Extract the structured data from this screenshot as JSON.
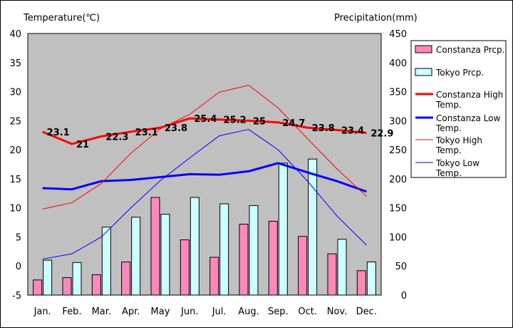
{
  "chart_data": {
    "type": "bar",
    "title": "",
    "ylabel_left": "Temperature(℃)",
    "ylabel_right": "Precipitation(mm)",
    "xlabel": "",
    "categories": [
      "Jan.",
      "Feb.",
      "Mar.",
      "Apr.",
      "May",
      "Jun.",
      "Jul.",
      "Aug.",
      "Sep.",
      "Oct.",
      "Nov.",
      "Dec."
    ],
    "ylim_left": [
      -5,
      40
    ],
    "yticks_left": [
      -5,
      0,
      5,
      10,
      15,
      20,
      25,
      30,
      35,
      40
    ],
    "ylim_right": [
      0,
      450
    ],
    "yticks_right": [
      0,
      50,
      100,
      150,
      200,
      250,
      300,
      350,
      400,
      450
    ],
    "grid": false,
    "legend_position": "right",
    "series": [
      {
        "name": "Constanza Prcp.",
        "kind": "bar",
        "axis": "right",
        "color": "#ff88bb",
        "values": [
          26,
          30,
          35,
          57,
          168,
          95,
          65,
          122,
          127,
          101,
          71,
          42
        ]
      },
      {
        "name": "Tokyo Prcp.",
        "kind": "bar",
        "axis": "right",
        "color": "#ccffff",
        "values": [
          60,
          56,
          117,
          134,
          139,
          168,
          157,
          154,
          227,
          234,
          96,
          57
        ]
      },
      {
        "name": "Constanza High Temp.",
        "kind": "line",
        "axis": "left",
        "color": "#ff0000",
        "width": "thick",
        "values": [
          23.1,
          21,
          22.3,
          23.1,
          23.8,
          25.4,
          25.2,
          25,
          24.7,
          23.8,
          23.4,
          22.9
        ],
        "labels": [
          "23.1",
          "21",
          "22.3",
          "23.1",
          "23.8",
          "25.4",
          "25.2",
          "25",
          "24.7",
          "23.8",
          "23.4",
          "22.9"
        ]
      },
      {
        "name": "Constanza Low Temp.",
        "kind": "line",
        "axis": "left",
        "color": "#0000ff",
        "width": "thick",
        "values": [
          13.4,
          13.2,
          14.6,
          14.8,
          15.3,
          15.8,
          15.7,
          16.3,
          17.7,
          16.1,
          14.6,
          12.8
        ]
      },
      {
        "name": "Tokyo High Temp.",
        "kind": "line",
        "axis": "left",
        "color": "#ff0000",
        "width": "thin",
        "values": [
          9.8,
          10.9,
          14.2,
          19.4,
          23.6,
          26.1,
          29.9,
          31.1,
          27.2,
          21.9,
          16.7,
          12.0
        ]
      },
      {
        "name": "Tokyo Low Temp.",
        "kind": "line",
        "axis": "left",
        "color": "#0000ff",
        "width": "thin",
        "values": [
          1.2,
          2.1,
          5.0,
          10.0,
          14.7,
          18.6,
          22.4,
          23.5,
          20.0,
          14.6,
          8.6,
          3.6
        ]
      }
    ]
  }
}
